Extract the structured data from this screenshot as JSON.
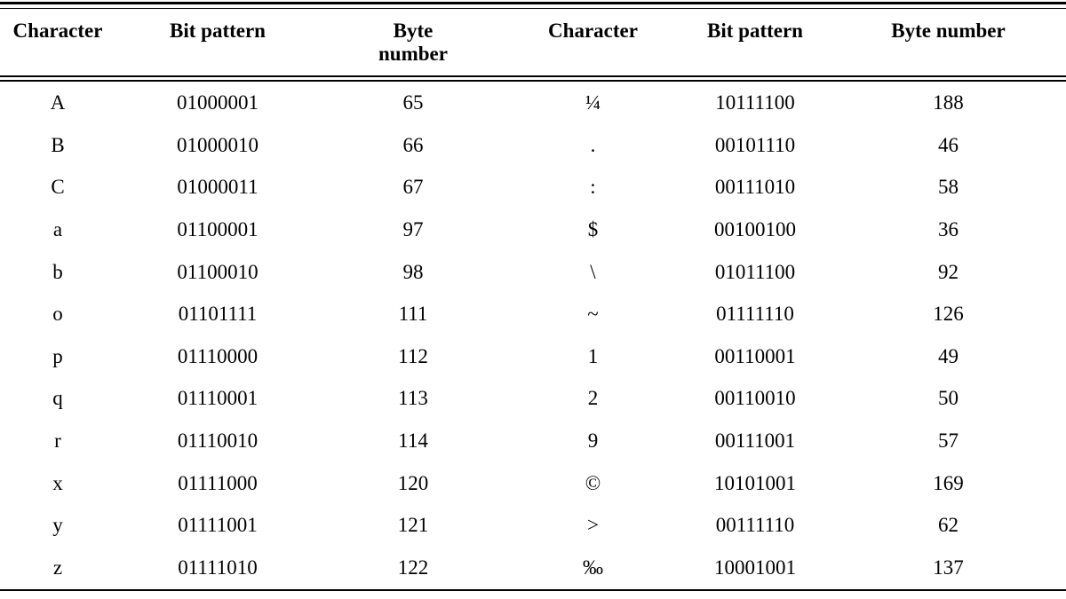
{
  "table": {
    "headers": [
      "Character",
      "Bit pattern",
      "Byte number",
      "Character",
      "Bit pattern",
      "Byte number"
    ],
    "rows": [
      [
        "A",
        "01000001",
        "65",
        "¼",
        "10111100",
        "188"
      ],
      [
        "B",
        "01000010",
        "66",
        ".",
        "00101110",
        "46"
      ],
      [
        "C",
        "01000011",
        "67",
        ":",
        "00111010",
        "58"
      ],
      [
        "a",
        "01100001",
        "97",
        "$",
        "00100100",
        "36"
      ],
      [
        "b",
        "01100010",
        "98",
        "\\",
        "01011100",
        "92"
      ],
      [
        "o",
        "01101111",
        "111",
        "~",
        "01111110",
        "126"
      ],
      [
        "p",
        "01110000",
        "112",
        "1",
        "00110001",
        "49"
      ],
      [
        "q",
        "01110001",
        "113",
        "2",
        "00110010",
        "50"
      ],
      [
        "r",
        "01110010",
        "114",
        "9",
        "00111001",
        "57"
      ],
      [
        "x",
        "01111000",
        "120",
        "©",
        "10101001",
        "169"
      ],
      [
        "y",
        "01111001",
        "121",
        ">",
        "00111110",
        "62"
      ],
      [
        "z",
        "01111010",
        "122",
        "‰",
        "10001001",
        "137"
      ]
    ],
    "colors": {
      "text": "#000000",
      "background": "#ffffff",
      "rule": "#000000"
    }
  }
}
